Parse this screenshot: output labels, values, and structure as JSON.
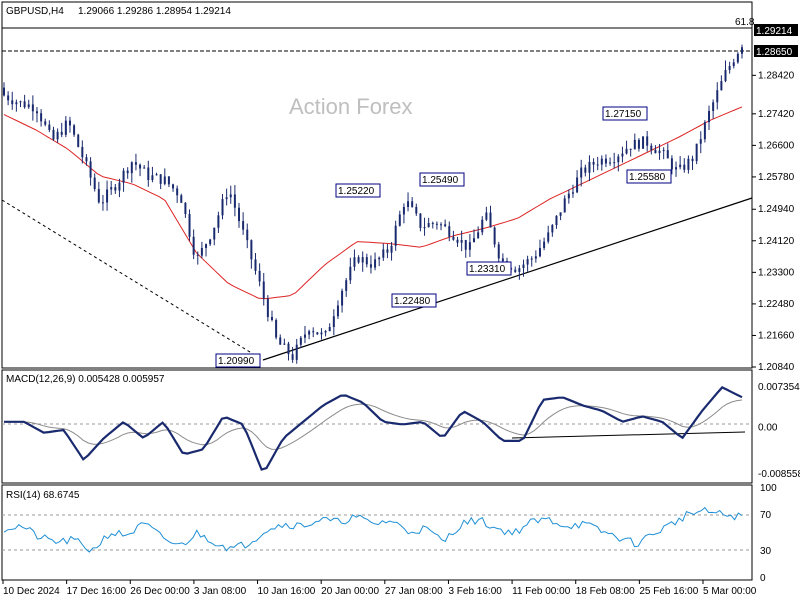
{
  "header": {
    "symbol": "GBPUSD,H4",
    "ohlc": "1.29066 1.29286 1.28954 1.29214"
  },
  "watermark": "Action Forex",
  "chart_data": [
    {
      "type": "candlestick",
      "symbol": "GBPUSD",
      "timeframe": "H4",
      "ylim": [
        1.2084,
        1.2965
      ],
      "y_ticks": [
        "1.28420",
        "1.27420",
        "1.26600",
        "1.25780",
        "1.24940",
        "1.24120",
        "1.23300",
        "1.22480",
        "1.21660",
        "1.20840"
      ],
      "x_ticks": [
        "10 Dec 2024",
        "17 Dec 16:00",
        "26 Dec 00:00",
        "3 Jan 08:00",
        "10 Jan 16:00",
        "20 Jan 00:00",
        "27 Jan 08:00",
        "3 Feb 16:00",
        "11 Feb 00:00",
        "18 Feb 08:00",
        "25 Feb 16:00",
        "5 Mar 00:00"
      ],
      "last_price": "1.29214",
      "level_line": "1.28650",
      "partial_label": "61.8",
      "annotations": [
        "1.20990",
        "1.22480",
        "1.23310",
        "1.25220",
        "1.25490",
        "1.27150",
        "1.25580"
      ],
      "close_anchors": [
        1.279,
        1.277,
        1.276,
        1.267,
        1.272,
        1.262,
        1.251,
        1.256,
        1.262,
        1.258,
        1.257,
        1.253,
        1.236,
        1.244,
        1.255,
        1.242,
        1.229,
        1.215,
        1.211,
        1.219,
        1.216,
        1.228,
        1.237,
        1.235,
        1.239,
        1.252,
        1.245,
        1.246,
        1.243,
        1.239,
        1.248,
        1.236,
        1.234,
        1.237,
        1.243,
        1.252,
        1.259,
        1.262,
        1.263,
        1.266,
        1.267,
        1.264,
        1.259,
        1.263,
        1.275,
        1.285,
        1.2925
      ],
      "moving_average": [
        1.274,
        1.27,
        1.265,
        1.258,
        1.256,
        1.252,
        1.238,
        1.23,
        1.226,
        1.227,
        1.235,
        1.241,
        1.2405,
        1.2395,
        1.2425,
        1.2445,
        1.247,
        1.252,
        1.256,
        1.26,
        1.264,
        1.268,
        1.2725,
        1.276
      ]
    },
    {
      "type": "line",
      "title": "MACD(12,26,9) 0.005428 0.005957",
      "ylim": [
        -0.01,
        0.009
      ],
      "y_ticks": [
        "0.007354",
        "0.00",
        "-0.008558"
      ],
      "macd_anchors": [
        0.001,
        0.001,
        -0.001,
        -0.0005,
        -0.006,
        -0.002,
        0.001,
        -0.002,
        0.001,
        -0.005,
        -0.004,
        0.002,
        0.0005,
        -0.0085,
        -0.002,
        0.001,
        0.004,
        0.006,
        0.0045,
        0.001,
        0.0005,
        0.001,
        -0.002,
        0.003,
        0.001,
        -0.0025,
        -0.0025,
        0.005,
        0.0055,
        0.004,
        0.003,
        0.001,
        0.002,
        0.001,
        -0.002,
        0.003,
        0.0073,
        0.0055
      ]
    },
    {
      "type": "line",
      "title": "RSI(14) 68.6745",
      "ylim": [
        0,
        100
      ],
      "y_ticks": [
        "100",
        "70",
        "30",
        "0"
      ],
      "rsi_anchors": [
        55,
        58,
        45,
        40,
        42,
        30,
        50,
        48,
        60,
        45,
        35,
        50,
        40,
        32,
        40,
        55,
        60,
        58,
        65,
        62,
        68,
        60,
        64,
        52,
        55,
        40,
        60,
        65,
        55,
        50,
        62,
        65,
        58,
        60,
        52,
        45,
        38,
        50,
        60,
        72,
        74,
        70,
        68
      ]
    }
  ]
}
